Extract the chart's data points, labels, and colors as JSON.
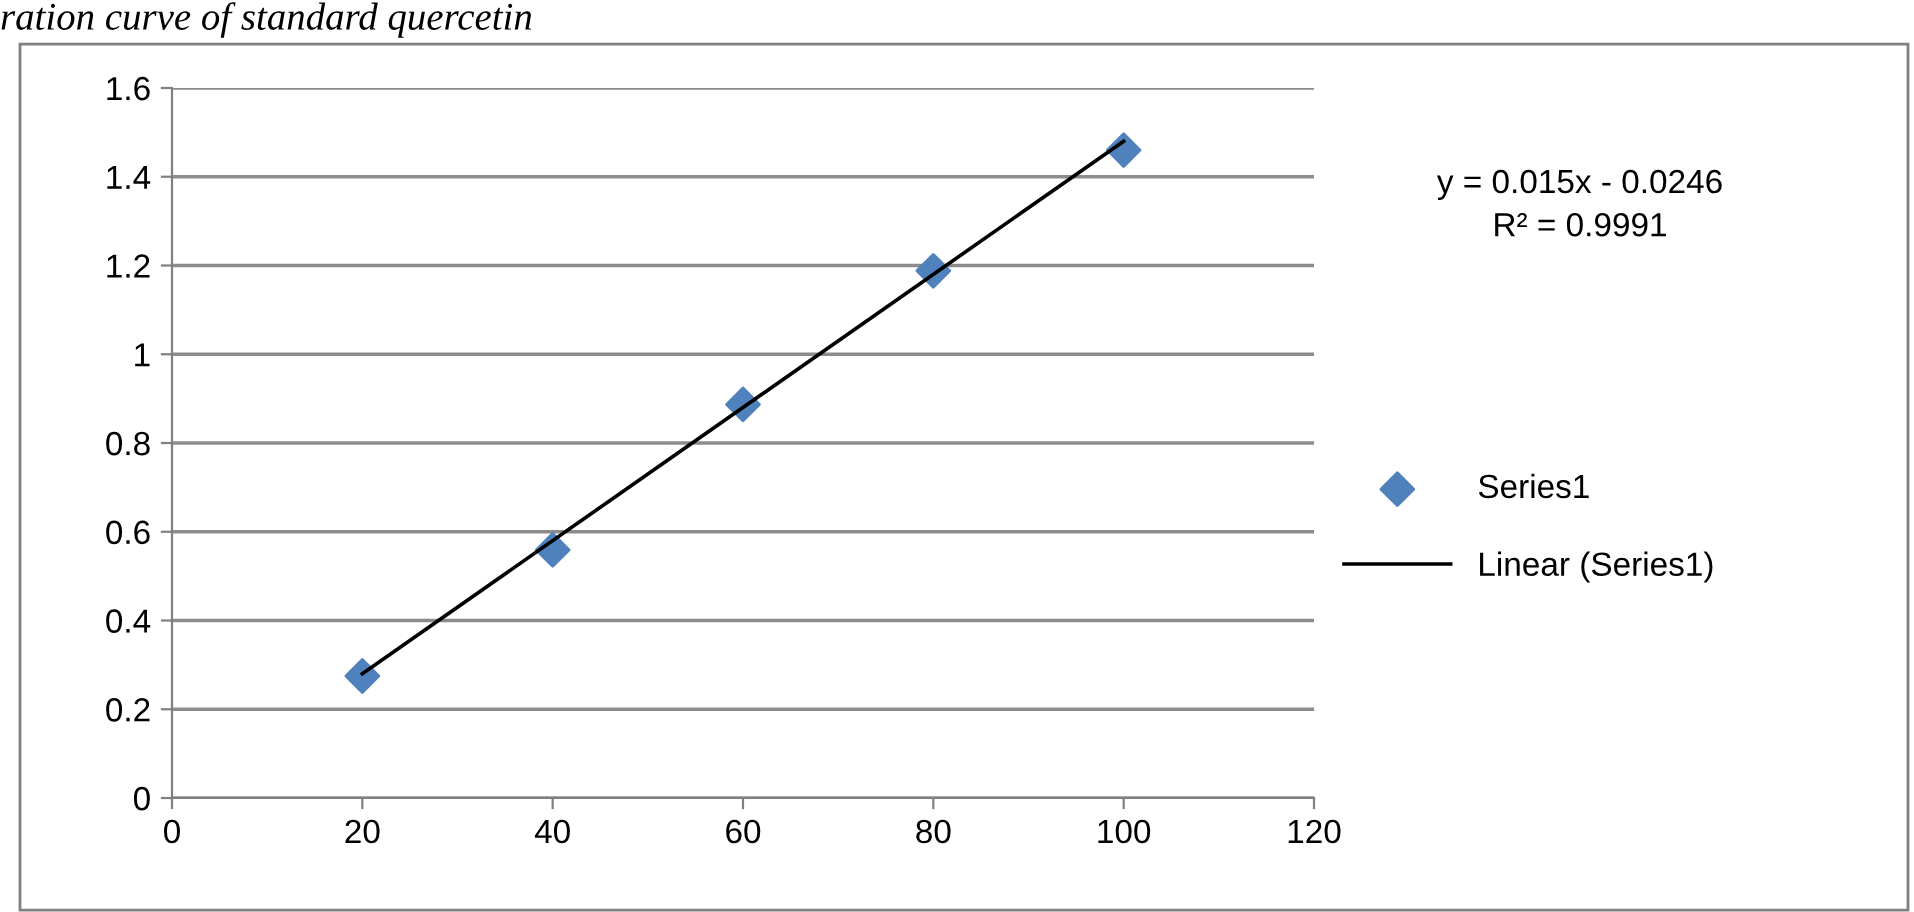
{
  "chart_data": {
    "type": "scatter",
    "title": "ration curve of standard quercetin",
    "annotations": [
      "y = 0.015x - 0.0246\nR² = 0.9991"
    ],
    "series": [
      {
        "name": "Series1",
        "color": "#4f81bd",
        "marker": "diamond",
        "x": [
          20,
          40,
          60,
          80,
          100
        ],
        "values": [
          0.275,
          0.559,
          0.887,
          1.188,
          1.46
        ]
      },
      {
        "name": "Linear (Series1)",
        "type": "line",
        "color": "#000000",
        "marker": "none",
        "line_style": "solid",
        "x": [
          20,
          100
        ],
        "values": [
          0.28,
          1.48
        ]
      }
    ],
    "xlim": [
      0,
      120
    ],
    "xticks": [
      0,
      20,
      40,
      60,
      80,
      100,
      120
    ],
    "ylim": [
      0,
      1.6
    ],
    "yticks": [
      0,
      0.2,
      0.4,
      0.6,
      0.8,
      1,
      1.2,
      1.4,
      1.6
    ],
    "grid": "y",
    "legend": "right"
  }
}
